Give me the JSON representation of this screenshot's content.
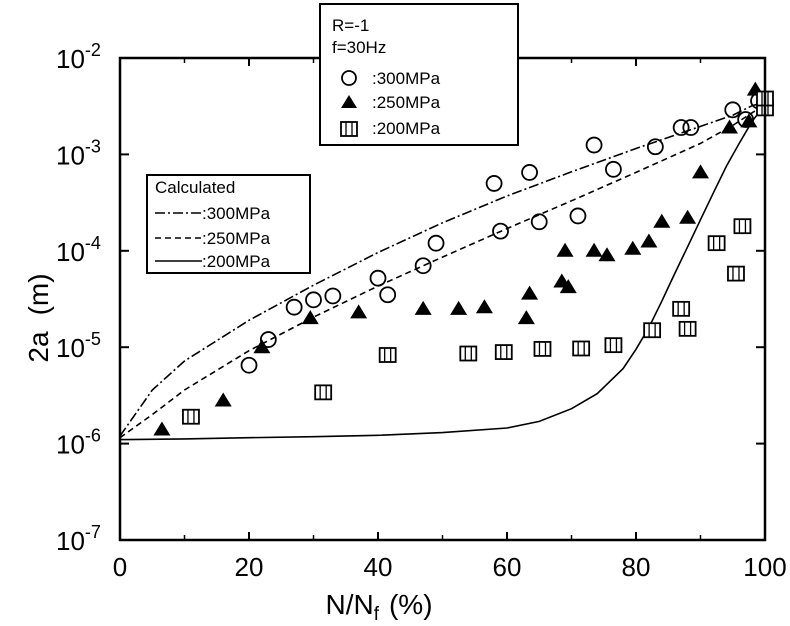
{
  "chart_data": {
    "type": "scatter",
    "xlabel": "N/N",
    "xlabel_sub": "f",
    "xlabel_unit": "(%)",
    "ylabel": "2a",
    "ylabel_unit": "(m)",
    "xlim": [
      0,
      100
    ],
    "ylim": [
      1e-07,
      0.01
    ],
    "yscale": "log",
    "x_ticks": [
      0,
      20,
      40,
      60,
      80,
      100
    ],
    "x_tick_labels": [
      "0",
      "20",
      "40",
      "60",
      "80",
      "100"
    ],
    "y_tick_exponents": [
      -7,
      -6,
      -5,
      -4,
      -3,
      -2
    ],
    "y_tick_base": "10",
    "y_tick_labels": [
      "-7",
      "-6",
      "-5",
      "-4",
      "-3",
      "-2"
    ],
    "legend_conditions": [
      "R=-1",
      "f=30Hz"
    ],
    "series": [
      {
        "name": ":300MPa",
        "marker": "open-circle",
        "points": [
          [
            20,
            6.5e-06
          ],
          [
            23,
            1.2e-05
          ],
          [
            27,
            2.6e-05
          ],
          [
            30,
            3.1e-05
          ],
          [
            33,
            3.4e-05
          ],
          [
            40,
            5.2e-05
          ],
          [
            41.5,
            3.5e-05
          ],
          [
            47,
            7e-05
          ],
          [
            49,
            0.00012
          ],
          [
            59,
            0.00016
          ],
          [
            65,
            0.0002
          ],
          [
            71,
            0.00023
          ],
          [
            58,
            0.0005
          ],
          [
            63.5,
            0.00065
          ],
          [
            76.5,
            0.0007
          ],
          [
            73.5,
            0.00125
          ],
          [
            83,
            0.0012
          ],
          [
            87,
            0.0019
          ],
          [
            88.5,
            0.0019
          ],
          [
            95,
            0.0029
          ],
          [
            97,
            0.0023
          ],
          [
            99,
            0.0036
          ]
        ]
      },
      {
        "name": ":250MPa",
        "marker": "filled-triangle",
        "points": [
          [
            6.5,
            1.4e-06
          ],
          [
            16,
            2.8e-06
          ],
          [
            22,
            1e-05
          ],
          [
            29.5,
            2e-05
          ],
          [
            37,
            2.3e-05
          ],
          [
            47,
            2.5e-05
          ],
          [
            52.5,
            2.5e-05
          ],
          [
            56.5,
            2.6e-05
          ],
          [
            63,
            2e-05
          ],
          [
            63.5,
            3.6e-05
          ],
          [
            68.5,
            4.8e-05
          ],
          [
            69.5,
            4.2e-05
          ],
          [
            69,
            0.0001
          ],
          [
            73.5,
            0.0001
          ],
          [
            75.5,
            9e-05
          ],
          [
            79.5,
            0.000105
          ],
          [
            82,
            0.000125
          ],
          [
            84,
            0.0002
          ],
          [
            88,
            0.00022
          ],
          [
            90,
            0.00065
          ],
          [
            94.5,
            0.0019
          ],
          [
            97.5,
            0.0022
          ],
          [
            98.5,
            0.0047
          ]
        ]
      },
      {
        "name": ":200MPa",
        "marker": "open-square",
        "points": [
          [
            11,
            1.9e-06
          ],
          [
            31.5,
            3.4e-06
          ],
          [
            41.5,
            8.3e-06
          ],
          [
            54,
            8.6e-06
          ],
          [
            59.5,
            8.9e-06
          ],
          [
            65.5,
            9.6e-06
          ],
          [
            71.5,
            9.7e-06
          ],
          [
            76.5,
            1.05e-05
          ],
          [
            82.5,
            1.5e-05
          ],
          [
            87,
            2.5e-05
          ],
          [
            88,
            1.55e-05
          ],
          [
            92.5,
            0.00012
          ],
          [
            95.5,
            5.8e-05
          ],
          [
            96.5,
            0.00018
          ],
          [
            100,
            0.003
          ],
          [
            100,
            0.0038
          ]
        ]
      }
    ],
    "calculated_title": "Calculated",
    "calculated_lines": [
      {
        "name": ":300MPa",
        "style": "dash-dot",
        "points": [
          [
            0,
            1.2e-06
          ],
          [
            5,
            3.6e-06
          ],
          [
            10,
            7.2e-06
          ],
          [
            20,
            1.9e-05
          ],
          [
            30,
            4.4e-05
          ],
          [
            40,
            9.6e-05
          ],
          [
            50,
            0.000195
          ],
          [
            60,
            0.00037
          ],
          [
            70,
            0.00066
          ],
          [
            80,
            0.00115
          ],
          [
            90,
            0.00195
          ],
          [
            95,
            0.00255
          ],
          [
            98,
            0.0032
          ],
          [
            100,
            0.0035
          ]
        ]
      },
      {
        "name": ":250MPa",
        "style": "dashed",
        "points": [
          [
            0,
            1.15e-06
          ],
          [
            5,
            2e-06
          ],
          [
            10,
            3.6e-06
          ],
          [
            20,
            9.2e-06
          ],
          [
            30,
            2.05e-05
          ],
          [
            40,
            4.3e-05
          ],
          [
            50,
            8.6e-05
          ],
          [
            60,
            0.00017
          ],
          [
            70,
            0.00033
          ],
          [
            80,
            0.00065
          ],
          [
            90,
            0.0013
          ],
          [
            95,
            0.002
          ],
          [
            98,
            0.0027
          ],
          [
            100,
            0.0033
          ]
        ]
      },
      {
        "name": ":200MPa",
        "style": "solid",
        "points": [
          [
            0,
            1.1e-06
          ],
          [
            10,
            1.12e-06
          ],
          [
            20,
            1.15e-06
          ],
          [
            30,
            1.18e-06
          ],
          [
            40,
            1.22e-06
          ],
          [
            50,
            1.3e-06
          ],
          [
            60,
            1.45e-06
          ],
          [
            65,
            1.7e-06
          ],
          [
            70,
            2.3e-06
          ],
          [
            74,
            3.3e-06
          ],
          [
            78,
            6e-06
          ],
          [
            80,
            9.5e-06
          ],
          [
            82,
            1.6e-05
          ],
          [
            84,
            3e-05
          ],
          [
            86,
            5.8e-05
          ],
          [
            88,
            0.00011
          ],
          [
            90,
            0.00021
          ],
          [
            92,
            0.0004
          ],
          [
            94,
            0.00075
          ],
          [
            96,
            0.0013
          ],
          [
            98,
            0.0022
          ],
          [
            100,
            0.0033
          ]
        ]
      }
    ],
    "grid": false,
    "legend_placement": "top-center and left-middle"
  }
}
